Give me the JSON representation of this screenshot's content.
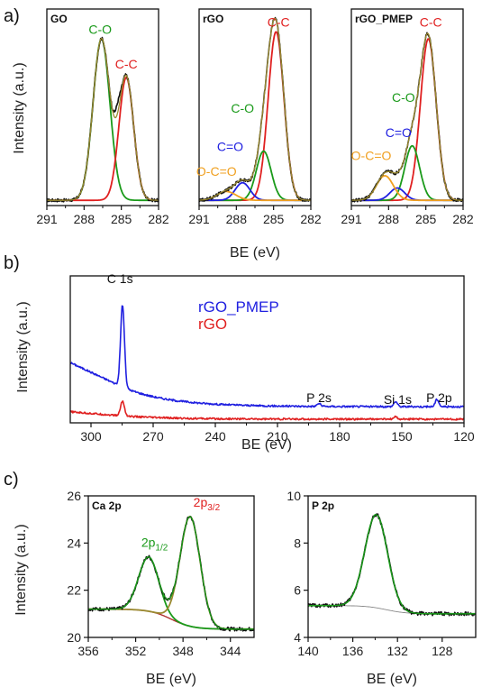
{
  "figure": {
    "panel_labels": [
      "a)",
      "b)",
      "c)"
    ]
  },
  "colors": {
    "black": "#111111",
    "green": "#1a9a1a",
    "red": "#e02020",
    "blue": "#2020e0",
    "orange": "#f0a020",
    "olive": "#9a8a30",
    "gray": "#888888"
  },
  "chart_data": [
    {
      "id": "go",
      "type": "line",
      "title": "GO",
      "xlabel": "",
      "ylabel": "Intensity (a.u.)",
      "xlim": [
        291,
        282
      ],
      "ylim": [
        0,
        1.12
      ],
      "xticks": [
        291,
        288,
        285,
        282
      ],
      "yticks": [],
      "components": [
        {
          "color": "green",
          "center": 286.6,
          "amp": 0.92,
          "fwhm": 1.6
        },
        {
          "color": "red",
          "center": 284.6,
          "amp": 0.7,
          "fwhm": 1.4
        }
      ],
      "baseline": 0.03,
      "annotations": [
        {
          "text": "C-O",
          "x": 286.7,
          "y": 0.98,
          "color": "green"
        },
        {
          "text": "C-C",
          "x": 284.6,
          "y": 0.78,
          "color": "red"
        }
      ]
    },
    {
      "id": "rgo",
      "type": "line",
      "title": "rGO",
      "xlabel": "BE (eV)",
      "ylabel": "",
      "xlim": [
        291,
        282
      ],
      "ylim": [
        0,
        1.12
      ],
      "xticks": [
        291,
        288,
        285,
        282
      ],
      "yticks": [],
      "components": [
        {
          "color": "red",
          "center": 284.8,
          "amp": 0.96,
          "fwhm": 1.5
        },
        {
          "color": "green",
          "center": 285.8,
          "amp": 0.28,
          "fwhm": 1.4
        },
        {
          "color": "blue",
          "center": 287.5,
          "amp": 0.1,
          "fwhm": 1.4
        },
        {
          "color": "orange",
          "center": 288.8,
          "amp": 0.05,
          "fwhm": 1.8
        }
      ],
      "baseline": 0.03,
      "annotations": [
        {
          "text": "C-C",
          "x": 284.6,
          "y": 1.02,
          "color": "red"
        },
        {
          "text": "C-O",
          "x": 287.5,
          "y": 0.53,
          "color": "green"
        },
        {
          "text": "C=O",
          "x": 288.5,
          "y": 0.31,
          "color": "blue"
        },
        {
          "text": "O-C=O",
          "x": 289.6,
          "y": 0.17,
          "color": "orange"
        }
      ]
    },
    {
      "id": "rgo_pmep",
      "type": "line",
      "title": "rGO_PMEP",
      "xlabel": "",
      "ylabel": "",
      "xlim": [
        291,
        282
      ],
      "ylim": [
        0,
        1.12
      ],
      "xticks": [
        291,
        288,
        285,
        282
      ],
      "yticks": [],
      "components": [
        {
          "color": "red",
          "center": 284.8,
          "amp": 0.92,
          "fwhm": 1.5
        },
        {
          "color": "green",
          "center": 286.1,
          "amp": 0.31,
          "fwhm": 1.4
        },
        {
          "color": "blue",
          "center": 287.3,
          "amp": 0.07,
          "fwhm": 1.4
        },
        {
          "color": "orange",
          "center": 288.3,
          "amp": 0.14,
          "fwhm": 1.6
        }
      ],
      "baseline": 0.03,
      "annotations": [
        {
          "text": "C-C",
          "x": 284.6,
          "y": 1.02,
          "color": "red"
        },
        {
          "text": "C-O",
          "x": 286.8,
          "y": 0.59,
          "color": "green"
        },
        {
          "text": "C=O",
          "x": 287.2,
          "y": 0.39,
          "color": "blue"
        },
        {
          "text": "O-C=O",
          "x": 289.4,
          "y": 0.26,
          "color": "orange"
        }
      ]
    },
    {
      "id": "survey",
      "type": "line",
      "title": "",
      "xlabel": "BE (eV)",
      "ylabel": "Intensity (a.u.)",
      "xlim": [
        310,
        120
      ],
      "ylim": [
        0,
        1
      ],
      "xticks": [
        300,
        270,
        240,
        210,
        180,
        150,
        120
      ],
      "yticks": [],
      "series": [
        {
          "name": "rGO_PMEP",
          "color": "blue",
          "edge": 0.3,
          "floor": 0.11,
          "peaks": [
            {
              "x": 284.8,
              "amp": 0.56
            },
            {
              "x": 190,
              "amp": 0.02
            },
            {
              "x": 153,
              "amp": 0.035
            },
            {
              "x": 133,
              "amp": 0.05
            }
          ]
        },
        {
          "name": "rGO",
          "color": "red",
          "edge": 0.05,
          "floor": 0.025,
          "peaks": [
            {
              "x": 284.8,
              "amp": 0.1
            },
            {
              "x": 153,
              "amp": 0.015
            }
          ]
        }
      ],
      "legend": [
        "rGO_PMEP",
        "rGO"
      ],
      "annotations": [
        {
          "text": "C 1s",
          "x": 286,
          "y": 0.95
        },
        {
          "text": "P 2s",
          "x": 190,
          "y": 0.14
        },
        {
          "text": "Si 1s",
          "x": 152,
          "y": 0.13
        },
        {
          "text": "P 2p",
          "x": 132,
          "y": 0.14
        }
      ]
    },
    {
      "id": "ca2p",
      "type": "line",
      "title": "Ca 2p",
      "xlabel": "BE (eV)",
      "ylabel": "Intensity (a.u.)",
      "xlim": [
        356,
        342
      ],
      "ylim": [
        20,
        26
      ],
      "xticks": [
        356,
        352,
        348,
        344
      ],
      "yticks": [
        20,
        22,
        24,
        26
      ],
      "components": [
        {
          "color": "green",
          "center": 350.9,
          "amp": 2.3,
          "fwhm": 2.0
        },
        {
          "color": "olive",
          "center": 347.4,
          "amp": 4.65,
          "fwhm": 2.0
        }
      ],
      "background": {
        "left": 21.2,
        "right": 20.35,
        "step_center": 349.0
      },
      "annotations": [
        {
          "text": "2p1/2",
          "x": 350.4,
          "y": 23.85,
          "color": "green"
        },
        {
          "text": "2p3/2",
          "x": 346.0,
          "y": 25.55,
          "color": "red"
        }
      ]
    },
    {
      "id": "p2p",
      "type": "line",
      "title": "P 2p",
      "xlabel": "BE (eV)",
      "ylabel": "",
      "xlim": [
        140,
        125
      ],
      "ylim": [
        4,
        10
      ],
      "xticks": [
        140,
        136,
        132,
        128
      ],
      "yticks": [
        4,
        6,
        8,
        10
      ],
      "components": [
        {
          "color": "green",
          "center": 133.9,
          "amp": 3.95,
          "fwhm": 2.4
        }
      ],
      "background": {
        "left": 5.35,
        "right": 5.0,
        "step_center": 133.0
      }
    }
  ]
}
